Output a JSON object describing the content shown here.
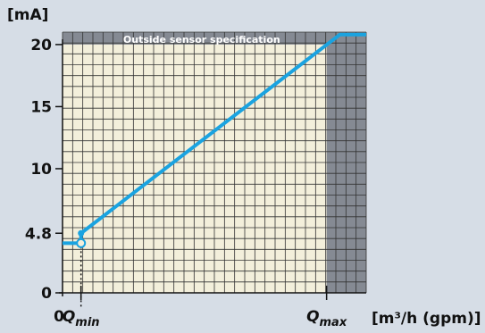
{
  "chart_data": {
    "type": "line",
    "y_unit": "[mA]",
    "x_unit": "[m³/h (gpm)]",
    "band_label": "Outside sensor specification",
    "y_ticks": [
      {
        "value": 0,
        "label": "0"
      },
      {
        "value": 4.8,
        "label": "4.8"
      },
      {
        "value": 10,
        "label": "10"
      },
      {
        "value": 15,
        "label": "15"
      },
      {
        "value": 20,
        "label": "20"
      }
    ],
    "x_ticks": [
      {
        "value": 0,
        "label": "0"
      },
      {
        "value": 0.07,
        "label": "Q",
        "sub": "min"
      },
      {
        "value": 1.0,
        "label": "Q",
        "sub": "max"
      }
    ],
    "xlim": [
      0,
      1.15
    ],
    "ylim": [
      0,
      21
    ],
    "shaded_regions": {
      "x_from": 1.0,
      "y_from": 20
    },
    "series": [
      {
        "color": "#1aa3e0",
        "points": [
          [
            0,
            4
          ],
          [
            0.07,
            4
          ],
          [
            0.07,
            4.8
          ],
          [
            1.05,
            20.8
          ],
          [
            1.15,
            20.8
          ]
        ]
      }
    ],
    "marker_point": {
      "x": 0.07,
      "y": 4
    },
    "colors": {
      "background": "#d6dde6",
      "plot_fill": "#f3efdb",
      "grid": "#333333",
      "shade": "#858a93",
      "line": "#1aa3e0"
    }
  }
}
